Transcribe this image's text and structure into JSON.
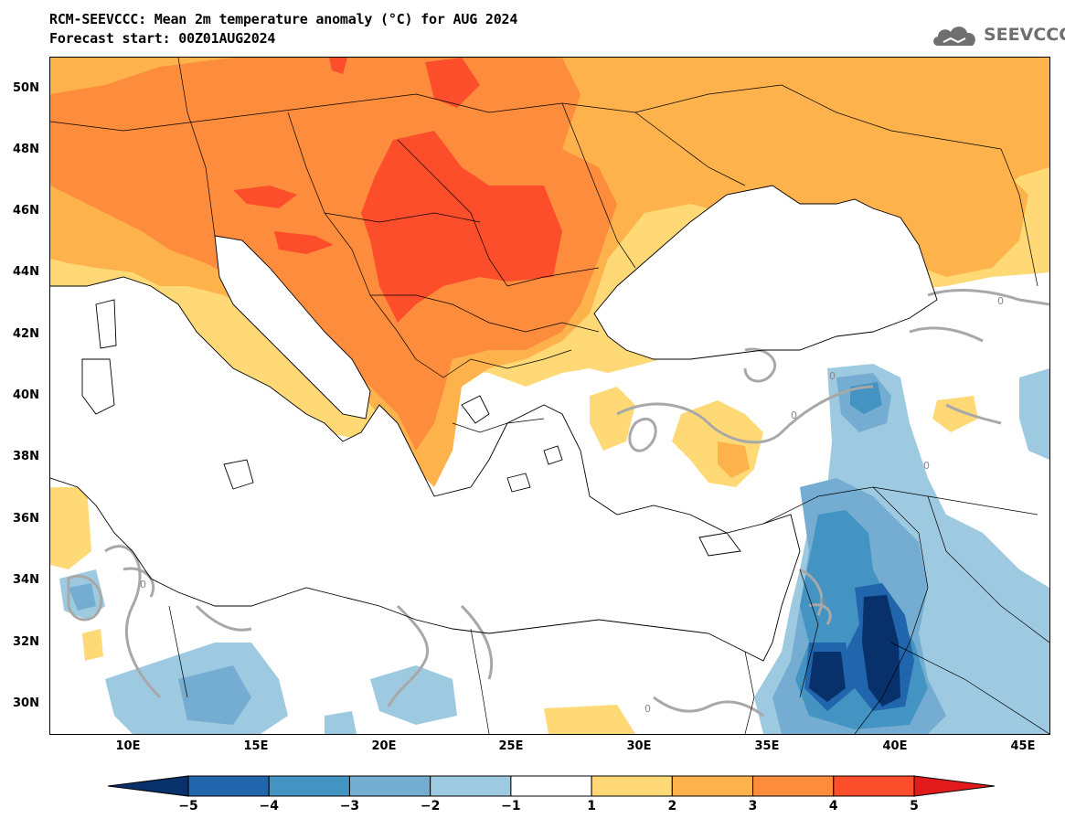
{
  "header": {
    "title": "RCM-SEEVCCC: Mean 2m temperature anomaly (°C) for AUG 2024",
    "subtitle": "Forecast start: 00Z01AUG2024"
  },
  "logo": {
    "text": "SEEVCCC",
    "icon": "cloud-icon"
  },
  "axes": {
    "latitudes": [
      "50N",
      "48N",
      "46N",
      "44N",
      "42N",
      "40N",
      "38N",
      "36N",
      "34N",
      "32N",
      "30N"
    ],
    "longitudes": [
      "10E",
      "15E",
      "20E",
      "25E",
      "30E",
      "35E",
      "40E",
      "45E"
    ]
  },
  "contour_labels": [
    "0",
    "0",
    "0",
    "0",
    "0",
    "0",
    "0"
  ],
  "colorbar": {
    "labels": [
      "−5",
      "−4",
      "−3",
      "−2",
      "−1",
      "1",
      "2",
      "3",
      "4",
      "5"
    ],
    "colors": [
      "#08306b",
      "#2166ac",
      "#4393c3",
      "#74add1",
      "#9ecae1",
      "#ffffff",
      "#fed976",
      "#feb24c",
      "#fd8d3c",
      "#fc4e2a",
      "#e31a1c"
    ]
  }
}
